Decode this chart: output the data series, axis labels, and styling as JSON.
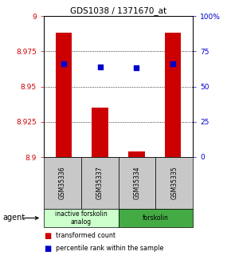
{
  "title": "GDS1038 / 1371670_at",
  "samples": [
    "GSM35336",
    "GSM35337",
    "GSM35334",
    "GSM35335"
  ],
  "bar_values": [
    8.988,
    8.935,
    8.904,
    8.988
  ],
  "percentile_values": [
    0.66,
    0.64,
    0.63,
    0.66
  ],
  "ylim_left": [
    8.9,
    9.0
  ],
  "ylim_right": [
    0,
    1.0
  ],
  "yticks_left": [
    8.9,
    8.925,
    8.95,
    8.975,
    9.0
  ],
  "yticks_left_labels": [
    "8.9",
    "8.925",
    "8.95",
    "8.975",
    "9"
  ],
  "yticks_right": [
    0,
    0.25,
    0.5,
    0.75,
    1.0
  ],
  "yticks_right_labels": [
    "0",
    "25",
    "50",
    "75",
    "100%"
  ],
  "bar_color": "#cc0000",
  "percentile_color": "#0000cc",
  "bar_bottom": 8.9,
  "agent_groups": [
    {
      "label": "inactive forskolin\nanalog",
      "samples": [
        0,
        1
      ],
      "color": "#ccffcc"
    },
    {
      "label": "forskolin",
      "samples": [
        2,
        3
      ],
      "color": "#44aa44"
    }
  ],
  "legend_items": [
    {
      "color": "#cc0000",
      "label": "transformed count"
    },
    {
      "color": "#0000cc",
      "label": "percentile rank within the sample"
    }
  ],
  "agent_label": "agent",
  "background_color": "#ffffff",
  "plot_bg_color": "#ffffff",
  "label_area_color": "#c8c8c8"
}
